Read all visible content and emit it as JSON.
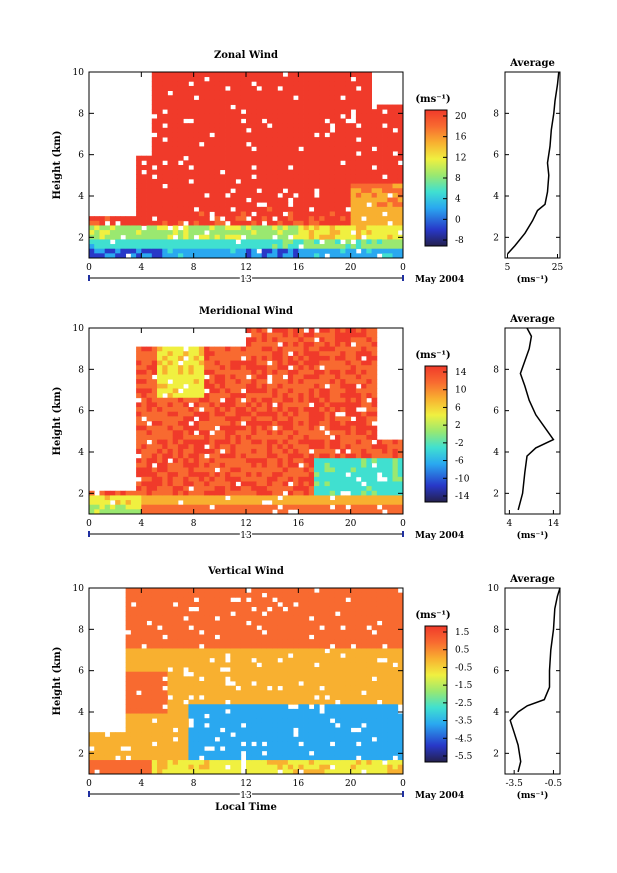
{
  "chart_data": [
    {
      "type": "heatmap",
      "title": "Zonal Wind",
      "ylabel": "Height (km)",
      "y_ticks": [
        "2",
        "4",
        "6",
        "8",
        "10"
      ],
      "x_ticks": [
        "0",
        "4",
        "8",
        "12",
        "16",
        "20",
        "0"
      ],
      "ylim": [
        1,
        10
      ],
      "xlim": [
        0,
        24
      ],
      "date_label": "13",
      "month_label": "May 2004",
      "colorbar": {
        "unit": "(ms⁻¹)",
        "ticks": [
          "20",
          "16",
          "12",
          "8",
          "4",
          "0",
          "-8"
        ],
        "range": [
          -10,
          22
        ]
      },
      "profile": {
        "title": "Average",
        "x_ticks": [
          "5",
          "25"
        ],
        "x_label": "(ms⁻¹)",
        "y_ticks": [
          "2",
          "4",
          "6",
          "8"
        ],
        "xlim": [
          4,
          26
        ],
        "points": [
          [
            5,
            1.2
          ],
          [
            8,
            1.6
          ],
          [
            12,
            2.2
          ],
          [
            15,
            2.8
          ],
          [
            17,
            3.3
          ],
          [
            20,
            3.6
          ],
          [
            21,
            4.2
          ],
          [
            21.5,
            5.0
          ],
          [
            21,
            5.6
          ],
          [
            22,
            6.4
          ],
          [
            22.5,
            7.2
          ],
          [
            23.5,
            8.0
          ],
          [
            24,
            8.6
          ],
          [
            25,
            9.4
          ],
          [
            25.5,
            10
          ]
        ]
      }
    },
    {
      "type": "heatmap",
      "title": "Meridional Wind",
      "ylabel": "Height (km)",
      "y_ticks": [
        "2",
        "4",
        "6",
        "8",
        "10"
      ],
      "x_ticks": [
        "0",
        "4",
        "8",
        "12",
        "16",
        "20",
        "0"
      ],
      "ylim": [
        1,
        10
      ],
      "xlim": [
        0,
        24
      ],
      "date_label": "13",
      "month_label": "May 2004",
      "colorbar": {
        "unit": "(ms⁻¹)",
        "ticks": [
          "14",
          "10",
          "6",
          "2",
          "-2",
          "-6",
          "-10",
          "-14"
        ],
        "range": [
          -16,
          16
        ]
      },
      "profile": {
        "title": "Average",
        "x_ticks": [
          "4",
          "14"
        ],
        "x_label": "(ms⁻¹)",
        "y_ticks": [
          "2",
          "4",
          "6",
          "8"
        ],
        "xlim": [
          3,
          15.5
        ],
        "points": [
          [
            6,
            1.2
          ],
          [
            7,
            2.0
          ],
          [
            7.5,
            3.0
          ],
          [
            8,
            3.8
          ],
          [
            10,
            4.2
          ],
          [
            14,
            4.6
          ],
          [
            12,
            5.2
          ],
          [
            10,
            5.8
          ],
          [
            8.5,
            6.5
          ],
          [
            7.5,
            7.2
          ],
          [
            6.5,
            7.8
          ],
          [
            7.5,
            8.4
          ],
          [
            8.5,
            9.0
          ],
          [
            9,
            9.6
          ],
          [
            8,
            10
          ]
        ]
      }
    },
    {
      "type": "heatmap",
      "title": "Vertical Wind",
      "ylabel": "Height (km)",
      "xlabel": "Local Time",
      "y_ticks": [
        "2",
        "4",
        "6",
        "8",
        "10"
      ],
      "x_ticks": [
        "0",
        "4",
        "8",
        "12",
        "16",
        "20",
        "0"
      ],
      "ylim": [
        1,
        10
      ],
      "xlim": [
        0,
        24
      ],
      "date_label": "13",
      "month_label": "May 2004",
      "colorbar": {
        "unit": "(ms⁻¹)",
        "ticks": [
          "1.5",
          "0.5",
          "-0.5",
          "-1.5",
          "-2.5",
          "-3.5",
          "-4.5",
          "-5.5"
        ],
        "range": [
          -6,
          2
        ]
      },
      "profile": {
        "title": "Average",
        "x_ticks": [
          "-3.5",
          "-0.5"
        ],
        "x_label": "(ms⁻¹)",
        "y_ticks": [
          "2",
          "4",
          "6",
          "8",
          "10"
        ],
        "xlim": [
          -4.2,
          0
        ],
        "points": [
          [
            -3.2,
            1.1
          ],
          [
            -3.0,
            1.6
          ],
          [
            -3.2,
            2.4
          ],
          [
            -3.5,
            3.0
          ],
          [
            -3.8,
            3.6
          ],
          [
            -3.2,
            4.0
          ],
          [
            -2.5,
            4.3
          ],
          [
            -1.2,
            4.6
          ],
          [
            -0.8,
            5.2
          ],
          [
            -0.8,
            6.0
          ],
          [
            -0.7,
            7.0
          ],
          [
            -0.5,
            8.0
          ],
          [
            -0.4,
            9.0
          ],
          [
            -0.2,
            9.6
          ],
          [
            0,
            10
          ]
        ]
      }
    }
  ]
}
